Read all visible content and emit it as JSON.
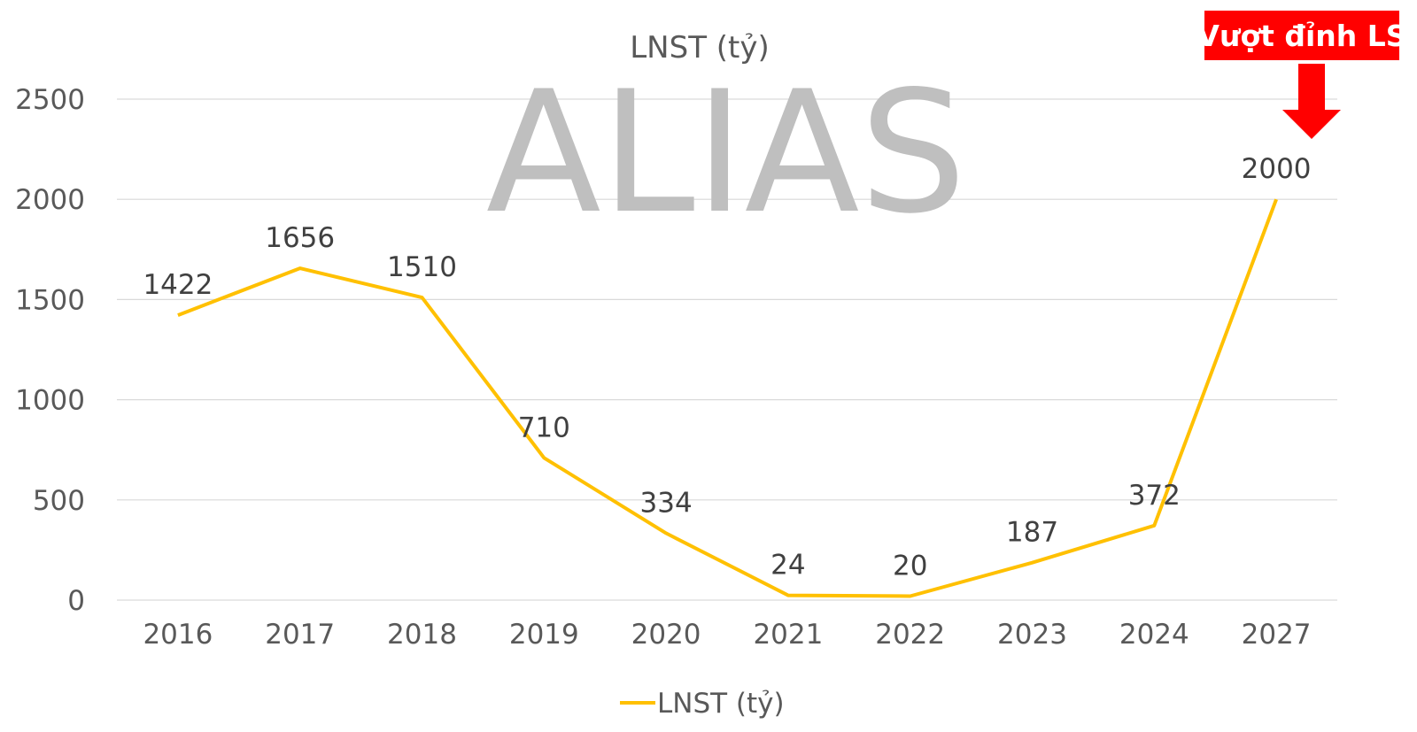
{
  "chart_data": {
    "type": "line",
    "title": "LNST (tỷ)",
    "categories": [
      "2016",
      "2017",
      "2018",
      "2019",
      "2020",
      "2021",
      "2022",
      "2023",
      "2024",
      "2027"
    ],
    "series": [
      {
        "name": "LNST (tỷ)",
        "values": [
          1422,
          1656,
          1510,
          710,
          334,
          24,
          20,
          187,
          372,
          2000
        ],
        "color": "#FFC000"
      }
    ],
    "ylim": [
      0,
      2500
    ],
    "yticks": [
      "0",
      "500",
      "1000",
      "1500",
      "2000",
      "2500"
    ],
    "data_labels": [
      "1422",
      "1656",
      "1510",
      "710",
      "334",
      "24",
      "20",
      "187",
      "372",
      "2000"
    ],
    "grid": true,
    "legend_position": "bottom"
  },
  "watermark": {
    "text": "ALIAS",
    "color": "#BFBFBF"
  },
  "callout": {
    "text": "Vượt đỉnh LS",
    "color": "#FF0000"
  }
}
